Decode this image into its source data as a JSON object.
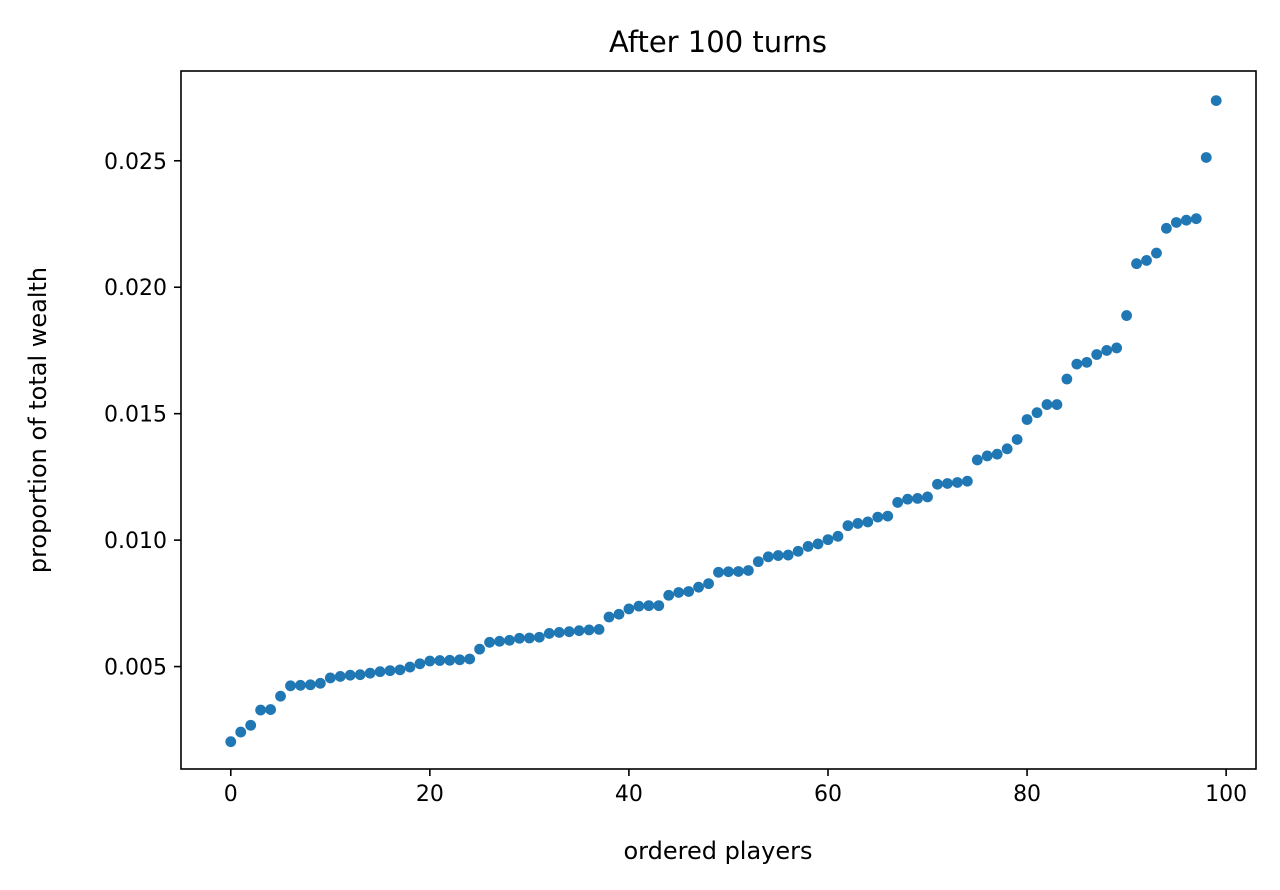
{
  "chart_data": {
    "type": "scatter",
    "title": "After 100 turns",
    "xlabel": "ordered players",
    "ylabel": "proportion of total wealth",
    "xlim": [
      -5,
      103
    ],
    "ylim": [
      0.00095,
      0.02855
    ],
    "xticks": [
      0,
      20,
      40,
      60,
      80,
      100
    ],
    "xtick_labels": [
      "0",
      "20",
      "40",
      "60",
      "80",
      "100"
    ],
    "yticks": [
      0.005,
      0.01,
      0.015,
      0.02,
      0.025
    ],
    "ytick_labels": [
      "0.005",
      "0.010",
      "0.015",
      "0.020",
      "0.025"
    ],
    "grid": false,
    "legend": "none",
    "color": "#1f77b4",
    "series": [
      {
        "x": [
          0,
          1,
          2,
          3,
          4,
          5,
          6,
          7,
          8,
          9,
          10,
          11,
          12,
          13,
          14,
          15,
          16,
          17,
          18,
          19,
          20,
          21,
          22,
          23,
          24,
          25,
          26,
          27,
          28,
          29,
          30,
          31,
          32,
          33,
          34,
          35,
          36,
          37,
          38,
          39,
          40,
          41,
          42,
          43,
          44,
          45,
          46,
          47,
          48,
          49,
          50,
          51,
          52,
          53,
          54,
          55,
          56,
          57,
          58,
          59,
          60,
          61,
          62,
          63,
          64,
          65,
          66,
          67,
          68,
          69,
          70,
          71,
          72,
          73,
          74,
          75,
          76,
          77,
          78,
          79,
          80,
          81,
          82,
          83,
          84,
          85,
          86,
          87,
          88,
          89,
          90,
          91,
          92,
          93,
          94,
          95,
          96,
          97,
          98,
          99
        ],
        "y": [
          0.00203,
          0.00241,
          0.00268,
          0.00328,
          0.0033,
          0.00383,
          0.00424,
          0.00426,
          0.00428,
          0.00434,
          0.00455,
          0.00461,
          0.00466,
          0.00468,
          0.00474,
          0.0048,
          0.00484,
          0.00487,
          0.00498,
          0.00511,
          0.00522,
          0.00524,
          0.00525,
          0.00527,
          0.0053,
          0.00569,
          0.00596,
          0.006,
          0.00604,
          0.00612,
          0.00613,
          0.00616,
          0.00631,
          0.00635,
          0.00638,
          0.00642,
          0.00645,
          0.00647,
          0.00696,
          0.00707,
          0.00728,
          0.00739,
          0.00741,
          0.00741,
          0.00782,
          0.00793,
          0.00797,
          0.00814,
          0.00828,
          0.00873,
          0.00875,
          0.00876,
          0.0088,
          0.00915,
          0.00934,
          0.00939,
          0.00941,
          0.00956,
          0.00975,
          0.00985,
          0.01002,
          0.01015,
          0.01057,
          0.01066,
          0.01072,
          0.01091,
          0.01095,
          0.01149,
          0.01162,
          0.01165,
          0.01171,
          0.01221,
          0.01224,
          0.01228,
          0.01233,
          0.01317,
          0.01333,
          0.0134,
          0.01361,
          0.01398,
          0.01477,
          0.01504,
          0.01536,
          0.01536,
          0.01637,
          0.01696,
          0.01703,
          0.01734,
          0.0175,
          0.0176,
          0.01888,
          0.02093,
          0.02106,
          0.02135,
          0.02233,
          0.02256,
          0.02265,
          0.02271,
          0.02513,
          0.02738
        ]
      }
    ]
  }
}
